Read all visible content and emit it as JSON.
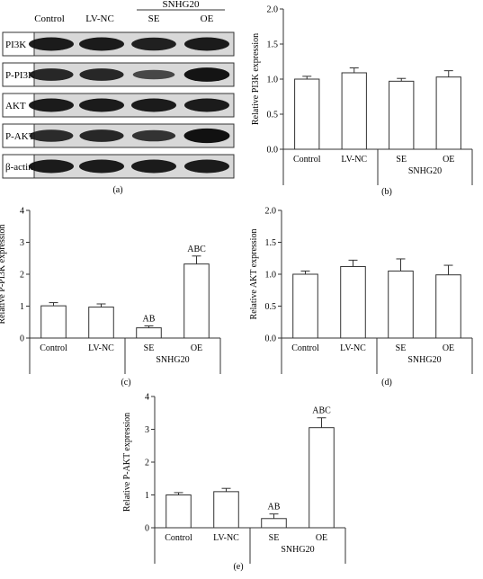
{
  "blot": {
    "header_labels": [
      "Control",
      "LV-NC",
      "SE",
      "OE"
    ],
    "group_label": "SNHG20",
    "rows": [
      {
        "label": "PI3K",
        "intensity": [
          1.0,
          1.0,
          0.95,
          1.0
        ]
      },
      {
        "label": "P-PI3K",
        "intensity": [
          0.85,
          0.85,
          0.45,
          1.1
        ]
      },
      {
        "label": "AKT",
        "intensity": [
          1.0,
          1.0,
          1.0,
          1.0
        ]
      },
      {
        "label": "P-AKT",
        "intensity": [
          0.8,
          0.85,
          0.7,
          1.15
        ]
      },
      {
        "label": "β-actin",
        "intensity": [
          1.0,
          1.0,
          1.0,
          1.0
        ]
      }
    ],
    "panel_letter": "(a)"
  },
  "chart_data": [
    {
      "type": "bar",
      "panel": "(b)",
      "categories": [
        "Control",
        "LV-NC",
        "SE",
        "OE"
      ],
      "group_label": "SNHG20",
      "values": [
        1.0,
        1.09,
        0.97,
        1.03
      ],
      "errors": [
        0.04,
        0.07,
        0.04,
        0.09
      ],
      "annotations": [
        "",
        "",
        "",
        ""
      ],
      "ylabel": "Relative PI3K expression",
      "ylim": [
        0,
        2.0
      ],
      "yticks": [
        "0.0",
        "0.5",
        "1.0",
        "1.5",
        "2.0"
      ]
    },
    {
      "type": "bar",
      "panel": "(c)",
      "categories": [
        "Control",
        "LV-NC",
        "SE",
        "OE"
      ],
      "group_label": "SNHG20",
      "values": [
        1.01,
        0.97,
        0.32,
        2.32
      ],
      "errors": [
        0.1,
        0.1,
        0.06,
        0.25
      ],
      "annotations": [
        "",
        "",
        "AB",
        "ABC"
      ],
      "ylabel": "Relative P-PI3K expression",
      "ylim": [
        0,
        4
      ],
      "yticks": [
        "0",
        "1",
        "2",
        "3",
        "4"
      ]
    },
    {
      "type": "bar",
      "panel": "(d)",
      "categories": [
        "Control",
        "LV-NC",
        "SE",
        "OE"
      ],
      "group_label": "SNHG20",
      "values": [
        1.0,
        1.12,
        1.05,
        0.99
      ],
      "errors": [
        0.05,
        0.1,
        0.19,
        0.15
      ],
      "annotations": [
        "",
        "",
        "",
        ""
      ],
      "ylabel": "Relative AKT expression",
      "ylim": [
        0,
        2.0
      ],
      "yticks": [
        "0.0",
        "0.5",
        "1.0",
        "1.5",
        "2.0"
      ]
    },
    {
      "type": "bar",
      "panel": "(e)",
      "categories": [
        "Control",
        "LV-NC",
        "SE",
        "OE"
      ],
      "group_label": "SNHG20",
      "values": [
        1.0,
        1.1,
        0.28,
        3.05
      ],
      "errors": [
        0.07,
        0.1,
        0.14,
        0.3
      ],
      "annotations": [
        "",
        "",
        "AB",
        "ABC"
      ],
      "ylabel": "Relative P-AKT expression",
      "ylim": [
        0,
        4
      ],
      "yticks": [
        "0",
        "1",
        "2",
        "3",
        "4"
      ]
    }
  ]
}
